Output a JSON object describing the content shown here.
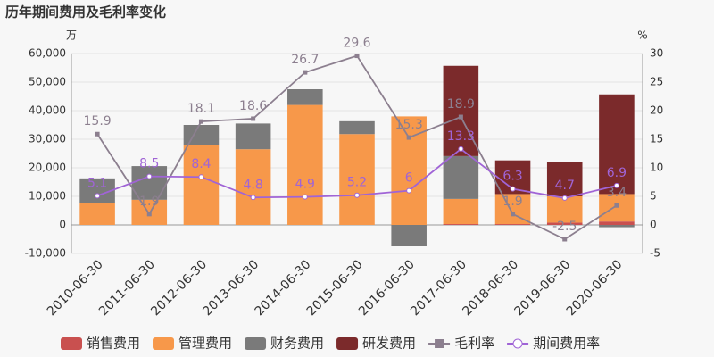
{
  "chart_data": {
    "type": "bar-line",
    "title": "历年期间费用及毛利率变化",
    "y_unit": "万",
    "y2_unit": "%",
    "categories": [
      "2010-06-30",
      "2011-06-30",
      "2012-06-30",
      "2013-06-30",
      "2014-06-30",
      "2015-06-30",
      "2016-06-30",
      "2017-06-30",
      "2018-06-30",
      "2019-06-30",
      "2020-06-30"
    ],
    "ylim": [
      -10000,
      60000
    ],
    "yticks": [
      {
        "value": -10000,
        "label": "-10,000"
      },
      0,
      {
        "value": 10000,
        "label": "10,000"
      },
      {
        "value": 20000,
        "label": "20,000"
      },
      {
        "value": 30000,
        "label": "30,000"
      },
      {
        "value": 40000,
        "label": "40,000"
      },
      {
        "value": 50000,
        "label": "50,000"
      },
      {
        "value": 60000,
        "label": "60,000"
      }
    ],
    "y2lim": [
      -5,
      30
    ],
    "y2ticks": [
      -5,
      0,
      5,
      10,
      15,
      20,
      25,
      30
    ],
    "grid": true,
    "series": [
      {
        "name": "销售费用",
        "type": "bar",
        "color": "#c9504f",
        "values": [
          0,
          0,
          0,
          0,
          0,
          0,
          0,
          300,
          300,
          800,
          1200
        ]
      },
      {
        "name": "管理费用",
        "type": "bar",
        "color": "#f7984a",
        "values": [
          7500,
          8800,
          28000,
          26500,
          42000,
          31800,
          38000,
          8800,
          10500,
          9200,
          9600
        ]
      },
      {
        "name": "财务费用",
        "type": "bar",
        "color": "#7a7a7a",
        "values": [
          8800,
          11800,
          7000,
          9000,
          5500,
          4500,
          -7500,
          15000,
          0,
          0,
          -800
        ]
      },
      {
        "name": "研发费用",
        "type": "bar",
        "color": "#7b2a2b",
        "values": [
          0,
          0,
          0,
          0,
          0,
          0,
          0,
          31600,
          11800,
          12000,
          34900
        ]
      },
      {
        "name": "毛利率",
        "type": "line",
        "axis": "y2",
        "color": "#8c7f8f",
        "marker": "square",
        "values": [
          15.9,
          1.9,
          18.1,
          18.6,
          26.7,
          29.6,
          15.3,
          18.9,
          1.9,
          -2.5,
          3.4
        ]
      },
      {
        "name": "期间费用率",
        "type": "line",
        "axis": "y2",
        "color": "#a064d6",
        "marker": "circle",
        "values": [
          5.1,
          8.5,
          8.4,
          4.8,
          4.9,
          5.2,
          6,
          13.3,
          6.3,
          4.7,
          6.9
        ]
      }
    ]
  }
}
